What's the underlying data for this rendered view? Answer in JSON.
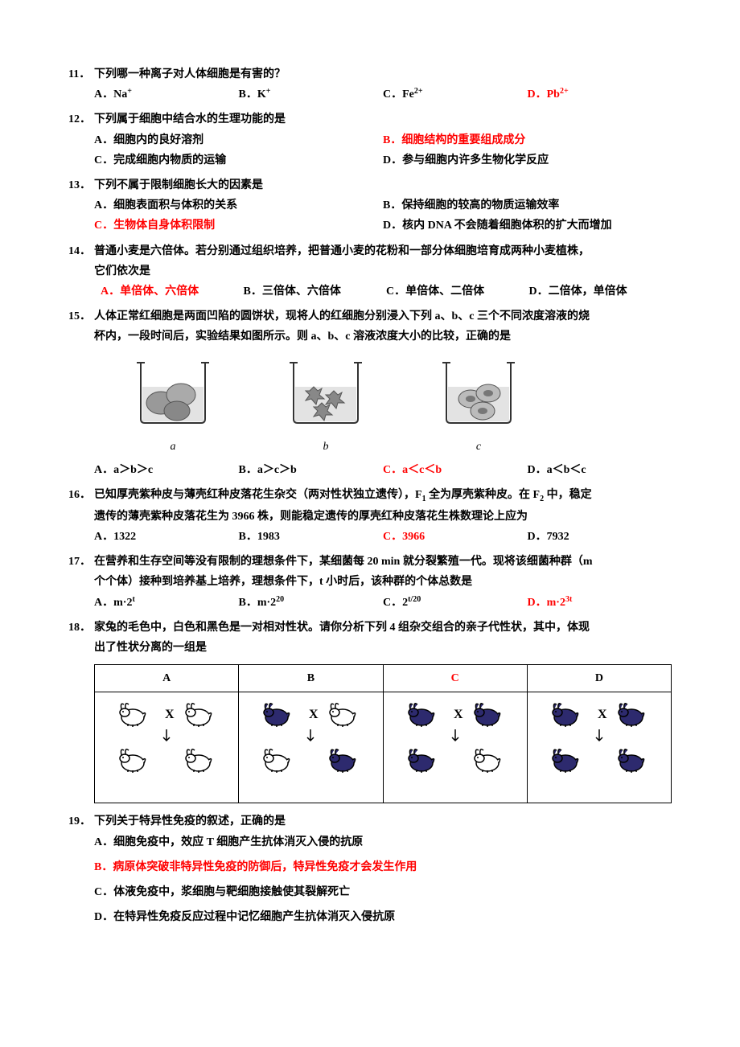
{
  "colors": {
    "text": "#000000",
    "highlight": "#ff0000",
    "background": "#ffffff",
    "rabbit_white": "#ffffff",
    "rabbit_black": "#2d2a6e",
    "beaker_gray": "#888888",
    "beaker_liquid": "#cccccc"
  },
  "questions": {
    "q11": {
      "num": "11．",
      "stem": "下列哪一种离子对人体细胞是有害的？",
      "opts": {
        "A": "A．Na",
        "A_sup": "+",
        "B": "B．K",
        "B_sup": "+",
        "C": "C．Fe",
        "C_sup": "2+",
        "D": "D．Pb",
        "D_sup": "2+"
      }
    },
    "q12": {
      "num": "12．",
      "stem": "下列属于细胞中结合水的生理功能的是",
      "opts": {
        "A": "A．细胞内的良好溶剂",
        "B": "B．细胞结构的重要组成成分",
        "C": "C．完成细胞内物质的运输",
        "D": "D．参与细胞内许多生物化学反应"
      }
    },
    "q13": {
      "num": "13．",
      "stem": "下列不属于限制细胞长大的因素是",
      "opts": {
        "A": "A．细胞表面积与体积的关系",
        "B": "B．保持细胞的较高的物质运输效率",
        "C": "C．生物体自身体积限制",
        "D": "D．核内 DNA 不会随着细胞体积的扩大而增加"
      }
    },
    "q14": {
      "num": "14．",
      "stem": "普通小麦是六倍体。若分别通过组织培养，把普通小麦的花粉和一部分体细胞培育成两种小麦植株，",
      "stem2": "它们依次是",
      "opts": {
        "A": "A．单倍体、六倍体",
        "B": "B．三倍体、六倍体",
        "C": "C．单倍体、二倍体",
        "D": "D．二倍体，单倍体"
      }
    },
    "q15": {
      "num": "15．",
      "stem": "人体正常红细胞是两面凹陷的圆饼状，现将人的红细胞分别浸入下列 a、b、c 三个不同浓度溶液的烧",
      "stem2": "杯内，一段时间后，实验结果如图所示。则 a、b、c 溶液浓度大小的比较，正确的是",
      "beakers": {
        "a": "a",
        "b": "b",
        "c": "c"
      },
      "opts": {
        "A": "A．a＞b＞c",
        "B": "B．a＞c＞b",
        "C": "C．a＜c＜b",
        "D": "D．a＜b＜c"
      }
    },
    "q16": {
      "num": "16．",
      "stem_p1": "已知厚壳紫种皮与薄壳红种皮落花生杂交（两对性状独立遗传），F",
      "stem_sub1": "1",
      "stem_p2": " 全为厚壳紫种皮。在 F",
      "stem_sub2": "2",
      "stem_p3": " 中，稳定",
      "stem2": "遗传的薄壳紫种皮落花生为 3966 株，则能稳定遗传的厚壳红种皮落花生株数理论上应为",
      "opts": {
        "A": "A．1322",
        "B": "B．1983",
        "C": "C．3966",
        "D": "D．7932"
      }
    },
    "q17": {
      "num": "17．",
      "stem": "在营养和生存空间等没有限制的理想条件下，某细菌每 20 min  就分裂繁殖一代。现将该细菌种群（m",
      "stem2": "个个体）接种到培养基上培养，理想条件下，t 小时后，该种群的个体总数是",
      "opts": {
        "A_pre": "A．m·2",
        "A_sup": "t",
        "B_pre": "B．m·2",
        "B_sup": "20",
        "C_pre": "C．2",
        "C_sup": "t/20",
        "D_pre": "D．m·2",
        "D_sup": "3t"
      }
    },
    "q18": {
      "num": "18．",
      "stem": "家兔的毛色中，白色和黑色是一对相对性状。请你分析下列 4 组杂交组合的亲子代性状，其中，体现",
      "stem2": "出了性状分离的一组是",
      "headers": {
        "A": "A",
        "B": "B",
        "C": "C",
        "D": "D"
      },
      "crosses": {
        "A": {
          "p1": "white",
          "p2": "white",
          "o1": "white",
          "o2": "white"
        },
        "B": {
          "p1": "black",
          "p2": "white",
          "o1": "white",
          "o2": "black"
        },
        "C": {
          "p1": "black",
          "p2": "black",
          "o1": "black",
          "o2": "white"
        },
        "D": {
          "p1": "black",
          "p2": "black",
          "o1": "black",
          "o2": "black"
        }
      }
    },
    "q19": {
      "num": "19．",
      "stem": "下列关于特异性免疫的叙述，正确的是",
      "opts": {
        "A": "A．细胞免疫中，效应 T 细胞产生抗体消灭入侵的抗原",
        "B": "B．病原体突破非特异性免疫的防御后，特异性免疫才会发生作用",
        "C": "C．体液免疫中，浆细胞与靶细胞接触使其裂解死亡",
        "D": "D．在特异性免疫反应过程中记忆细胞产生抗体消灭入侵抗原"
      }
    }
  }
}
